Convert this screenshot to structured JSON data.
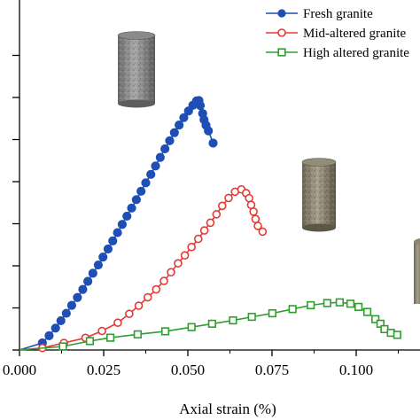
{
  "chart_data": {
    "type": "line",
    "title": "",
    "xlabel": "Axial strain (%)",
    "ylabel": "",
    "xlim": [
      0.0,
      0.116
    ],
    "ylim": [
      0,
      200
    ],
    "x_ticks": [
      0.0,
      0.025,
      0.05,
      0.075,
      0.1
    ],
    "x_tick_labels": [
      "0.000",
      "0.025",
      "0.050",
      "0.075",
      "0.100"
    ],
    "y_ticks": [
      0,
      25,
      50,
      75,
      100,
      125,
      150,
      175
    ],
    "y_tick_labels": [
      "",
      "",
      "",
      "",
      "",
      "",
      "",
      ""
    ],
    "grid": false,
    "legend_position": "top-right",
    "series": [
      {
        "name": "Fresh granite",
        "color": "#1f4fb5",
        "marker": "filled-circle",
        "points": [
          [
            0.0,
            0.0
          ],
          [
            0.0068,
            4.2
          ],
          [
            0.0088,
            8.5
          ],
          [
            0.0107,
            13.0
          ],
          [
            0.0123,
            17.4
          ],
          [
            0.0139,
            21.8
          ],
          [
            0.0155,
            26.5
          ],
          [
            0.0172,
            31.2
          ],
          [
            0.0188,
            36.0
          ],
          [
            0.0203,
            40.8
          ],
          [
            0.0218,
            45.6
          ],
          [
            0.0234,
            50.5
          ],
          [
            0.0248,
            55.2
          ],
          [
            0.0263,
            60.0
          ],
          [
            0.0277,
            64.8
          ],
          [
            0.0291,
            69.7
          ],
          [
            0.0305,
            74.6
          ],
          [
            0.0319,
            79.5
          ],
          [
            0.0333,
            84.3
          ],
          [
            0.0347,
            89.3
          ],
          [
            0.0361,
            94.3
          ],
          [
            0.0375,
            99.3
          ],
          [
            0.039,
            104.3
          ],
          [
            0.0404,
            109.3
          ],
          [
            0.0418,
            114.4
          ],
          [
            0.0432,
            119.5
          ],
          [
            0.0446,
            124.3
          ],
          [
            0.046,
            129.1
          ],
          [
            0.0474,
            133.6
          ],
          [
            0.0488,
            138.0
          ],
          [
            0.0502,
            142.0
          ],
          [
            0.0515,
            145.4
          ],
          [
            0.0526,
            148.0
          ],
          [
            0.0533,
            148.2
          ],
          [
            0.0537,
            145.2
          ],
          [
            0.0544,
            140.5
          ],
          [
            0.0548,
            136.8
          ],
          [
            0.0554,
            133.5
          ],
          [
            0.0561,
            130.2
          ],
          [
            0.0575,
            122.9
          ]
        ]
      },
      {
        "name": "Mid-altered granite",
        "color": "#e53935",
        "marker": "open-circle",
        "points": [
          [
            0.0,
            0.0
          ],
          [
            0.0068,
            1.2
          ],
          [
            0.0132,
            4.2
          ],
          [
            0.0196,
            7.2
          ],
          [
            0.0245,
            11.3
          ],
          [
            0.0292,
            16.2
          ],
          [
            0.0326,
            21.5
          ],
          [
            0.0354,
            26.3
          ],
          [
            0.0381,
            31.3
          ],
          [
            0.0406,
            36.0
          ],
          [
            0.0429,
            41.0
          ],
          [
            0.045,
            46.2
          ],
          [
            0.0471,
            51.5
          ],
          [
            0.0491,
            56.2
          ],
          [
            0.0511,
            61.2
          ],
          [
            0.0531,
            66.0
          ],
          [
            0.0549,
            71.0
          ],
          [
            0.0567,
            75.6
          ],
          [
            0.0585,
            80.6
          ],
          [
            0.0602,
            85.6
          ],
          [
            0.0621,
            90.3
          ],
          [
            0.064,
            94.0
          ],
          [
            0.0659,
            95.4
          ],
          [
            0.0673,
            93.2
          ],
          [
            0.0682,
            90.2
          ],
          [
            0.0688,
            86.2
          ],
          [
            0.0695,
            82.2
          ],
          [
            0.0701,
            77.8
          ],
          [
            0.0708,
            73.7
          ],
          [
            0.0722,
            70.3
          ]
        ]
      },
      {
        "name": "High altered granite",
        "color": "#2e9e2e",
        "marker": "open-square",
        "points": [
          [
            0.0,
            0.0
          ],
          [
            0.0129,
            2.1
          ],
          [
            0.0209,
            5.3
          ],
          [
            0.027,
            7.3
          ],
          [
            0.0351,
            9.3
          ],
          [
            0.0433,
            11.1
          ],
          [
            0.0511,
            13.6
          ],
          [
            0.0572,
            15.6
          ],
          [
            0.0634,
            17.6
          ],
          [
            0.069,
            19.7
          ],
          [
            0.0751,
            21.8
          ],
          [
            0.0811,
            24.3
          ],
          [
            0.0865,
            26.6
          ],
          [
            0.0914,
            27.9
          ],
          [
            0.0951,
            28.3
          ],
          [
            0.0983,
            27.5
          ],
          [
            0.1007,
            25.6
          ],
          [
            0.1033,
            22.6
          ],
          [
            0.1057,
            18.3
          ],
          [
            0.1072,
            15.6
          ],
          [
            0.1084,
            12.4
          ],
          [
            0.1103,
            10.2
          ],
          [
            0.1122,
            9.0
          ]
        ]
      }
    ]
  }
}
